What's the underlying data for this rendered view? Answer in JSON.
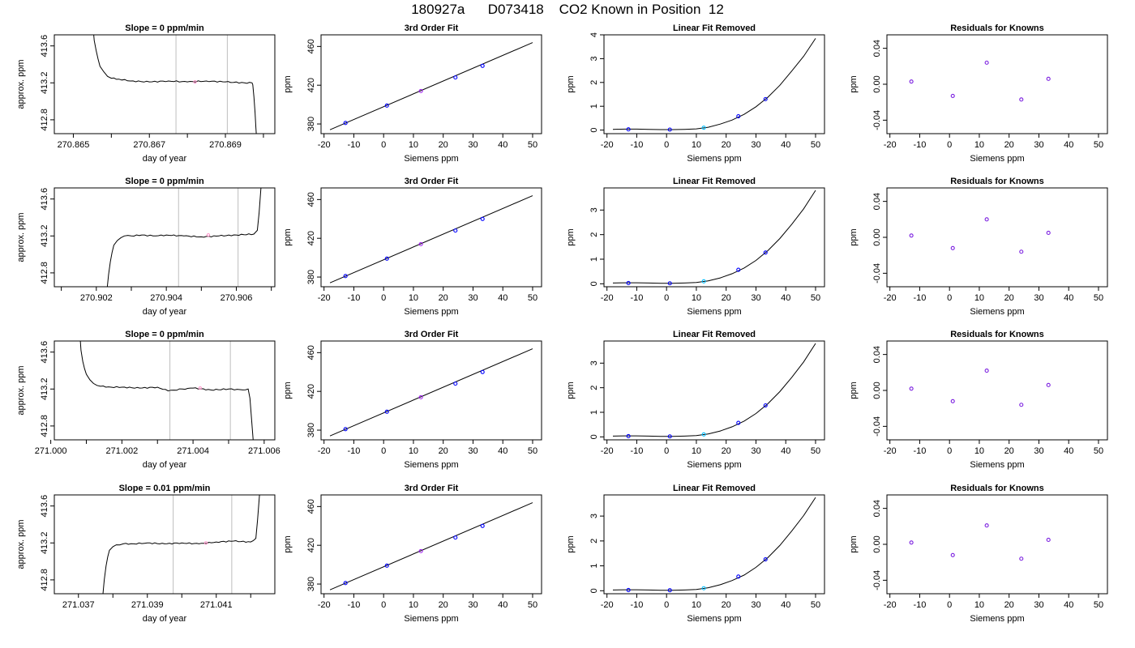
{
  "page": {
    "title": "180927a      D073418    CO2 Known in Position  12"
  },
  "chart_data": [
    {
      "type": "line",
      "panel": "timeseries",
      "row": 0,
      "col": 0,
      "title": "Slope =  0  ppm/min",
      "xlabel": "day of year",
      "ylabel": "approx. ppm",
      "xlim": [
        270.8645,
        270.8703
      ],
      "ylim": [
        412.65,
        413.72
      ],
      "xticks_major": [
        270.865,
        270.867,
        270.869
      ],
      "xticks_minor": [
        270.866,
        270.868,
        270.87
      ],
      "yticks": [
        412.8,
        413.2,
        413.6
      ],
      "vlines": [
        270.8677,
        270.86905
      ],
      "series": [
        {
          "x": [
            270.8655,
            270.86555,
            270.8656,
            270.86565,
            270.8657,
            270.8658,
            270.8659,
            270.866,
            270.8662,
            270.8665,
            270.867,
            270.8675,
            270.868,
            270.8685,
            270.869,
            270.8695,
            270.8697,
            270.86972,
            270.86975,
            270.86978,
            270.8698,
            270.86982
          ],
          "y": [
            413.9,
            413.66,
            413.55,
            413.46,
            413.38,
            413.32,
            413.27,
            413.25,
            413.24,
            413.22,
            413.21,
            413.22,
            413.21,
            413.22,
            413.21,
            413.2,
            413.2,
            413.18,
            413.05,
            412.88,
            412.72,
            412.6
          ]
        }
      ],
      "marker": {
        "x": 270.8682,
        "y": 413.21
      }
    },
    {
      "type": "line",
      "panel": "timeseries",
      "row": 1,
      "col": 0,
      "title": "Slope =  0  ppm/min",
      "xlabel": "day of year",
      "ylabel": "approx. ppm",
      "xlim": [
        270.9008,
        270.9071
      ],
      "ylim": [
        412.65,
        413.72
      ],
      "xticks_major": [
        270.902,
        270.904,
        270.906
      ],
      "xticks_minor": [
        270.901,
        270.903,
        270.905,
        270.907
      ],
      "yticks": [
        412.8,
        413.2,
        413.6
      ],
      "vlines": [
        270.90435,
        270.90605
      ],
      "series": [
        {
          "x": [
            270.9023,
            270.90235,
            270.9024,
            270.90245,
            270.9025,
            270.9026,
            270.9027,
            270.9028,
            270.903,
            270.9033,
            270.9037,
            270.904,
            270.9045,
            270.905,
            270.9055,
            270.906,
            270.9065,
            270.9066,
            270.90665,
            270.9067,
            270.90675
          ],
          "y": [
            412.6,
            412.78,
            412.92,
            413.02,
            413.1,
            413.15,
            413.18,
            413.2,
            413.2,
            413.21,
            413.2,
            413.21,
            413.2,
            413.19,
            413.2,
            413.21,
            413.22,
            413.26,
            413.45,
            413.7,
            413.9
          ]
        }
      ],
      "marker": {
        "x": 270.9052,
        "y": 413.21
      }
    },
    {
      "type": "line",
      "panel": "timeseries",
      "row": 2,
      "col": 0,
      "title": "Slope =  0  ppm/min",
      "xlabel": "day of year",
      "ylabel": "approx. ppm",
      "xlim": [
        271.0001,
        271.0063
      ],
      "ylim": [
        412.65,
        413.72
      ],
      "xticks_major": [
        271.0,
        271.002,
        271.004,
        271.006
      ],
      "xticks_minor": [
        271.001,
        271.003,
        271.005
      ],
      "yticks": [
        412.8,
        413.2,
        413.6
      ],
      "vlines": [
        271.00335,
        271.00505
      ],
      "series": [
        {
          "x": [
            271.0008,
            271.00085,
            271.0009,
            271.00095,
            271.001,
            271.0011,
            271.0012,
            271.0014,
            271.0017,
            271.002,
            271.0025,
            271.003,
            271.0033,
            271.0037,
            271.004,
            271.0045,
            271.005,
            271.0054,
            271.00555,
            271.0056,
            271.00565,
            271.0057
          ],
          "y": [
            413.9,
            413.62,
            413.5,
            413.42,
            413.36,
            413.3,
            413.26,
            413.23,
            413.22,
            413.22,
            413.21,
            413.22,
            413.18,
            413.2,
            413.21,
            413.19,
            413.2,
            413.19,
            413.2,
            413.1,
            412.85,
            412.6
          ]
        }
      ],
      "marker": {
        "x": 271.0042,
        "y": 413.21
      }
    },
    {
      "type": "line",
      "panel": "timeseries",
      "row": 3,
      "col": 0,
      "title": "Slope =  0.01  ppm/min",
      "xlabel": "day of year",
      "ylabel": "approx. ppm",
      "xlim": [
        271.0363,
        271.0427
      ],
      "ylim": [
        412.65,
        413.72
      ],
      "xticks_major": [
        271.037,
        271.039,
        271.041
      ],
      "xticks_minor": [
        271.038,
        271.04,
        271.042
      ],
      "yticks": [
        412.8,
        413.2,
        413.6
      ],
      "vlines": [
        271.03975,
        271.04145
      ],
      "series": [
        {
          "x": [
            271.0377,
            271.03775,
            271.0378,
            271.03785,
            271.0379,
            271.038,
            271.0381,
            271.0383,
            271.0386,
            271.039,
            271.0395,
            271.04,
            271.0405,
            271.041,
            271.0415,
            271.042,
            271.04215,
            271.0422,
            271.04225,
            271.0423
          ],
          "y": [
            412.6,
            412.8,
            412.95,
            413.05,
            413.12,
            413.16,
            413.18,
            413.19,
            413.19,
            413.2,
            413.19,
            413.2,
            413.19,
            413.21,
            413.22,
            413.21,
            413.25,
            413.45,
            413.7,
            413.9
          ]
        }
      ],
      "marker": {
        "x": 271.0407,
        "y": 413.2
      }
    },
    {
      "type": "scatter",
      "panel": "cubic",
      "row": 0,
      "col": 1,
      "title": "3rd Order Fit",
      "xlabel": "Siemens ppm",
      "ylabel": "ppm",
      "xlim": [
        -21,
        53
      ],
      "ylim": [
        370,
        472
      ],
      "xticks": [
        -20,
        -10,
        0,
        10,
        20,
        30,
        40,
        50
      ],
      "yticks": [
        380,
        420,
        460
      ],
      "line": {
        "x0": -18,
        "y0": 374,
        "x1": 50,
        "y1": 464
      },
      "x": [
        -12.8,
        1.1,
        12.5,
        24.1,
        33.2
      ],
      "y": [
        381,
        399,
        414,
        428,
        440
      ]
    },
    {
      "type": "scatter",
      "panel": "cubic",
      "row": 1,
      "col": 1,
      "title": "3rd Order Fit",
      "xlabel": "Siemens ppm",
      "ylabel": "ppm",
      "xlim": [
        -21,
        53
      ],
      "ylim": [
        370,
        472
      ],
      "xticks": [
        -20,
        -10,
        0,
        10,
        20,
        30,
        40,
        50
      ],
      "yticks": [
        380,
        420,
        460
      ],
      "line": {
        "x0": -18,
        "y0": 374,
        "x1": 50,
        "y1": 464
      },
      "x": [
        -12.8,
        1.1,
        12.5,
        24.1,
        33.2
      ],
      "y": [
        381,
        399,
        414,
        428,
        440
      ]
    },
    {
      "type": "scatter",
      "panel": "cubic",
      "row": 2,
      "col": 1,
      "title": "3rd Order Fit",
      "xlabel": "Siemens ppm",
      "ylabel": "ppm",
      "xlim": [
        -21,
        53
      ],
      "ylim": [
        370,
        472
      ],
      "xticks": [
        -20,
        -10,
        0,
        10,
        20,
        30,
        40,
        50
      ],
      "yticks": [
        380,
        420,
        460
      ],
      "line": {
        "x0": -18,
        "y0": 374,
        "x1": 50,
        "y1": 464
      },
      "x": [
        -12.8,
        1.1,
        12.5,
        24.1,
        33.2
      ],
      "y": [
        381,
        399,
        414,
        428,
        440
      ]
    },
    {
      "type": "scatter",
      "panel": "cubic",
      "row": 3,
      "col": 1,
      "title": "3rd Order Fit",
      "xlabel": "Siemens ppm",
      "ylabel": "ppm",
      "xlim": [
        -21,
        53
      ],
      "ylim": [
        370,
        472
      ],
      "xticks": [
        -20,
        -10,
        0,
        10,
        20,
        30,
        40,
        50
      ],
      "yticks": [
        380,
        420,
        460
      ],
      "line": {
        "x0": -18,
        "y0": 374,
        "x1": 50,
        "y1": 464
      },
      "x": [
        -12.8,
        1.1,
        12.5,
        24.1,
        33.2
      ],
      "y": [
        381,
        399,
        414,
        428,
        440
      ]
    },
    {
      "type": "scatter",
      "panel": "linremoved",
      "row": 0,
      "col": 2,
      "title": "Linear Fit Removed",
      "xlabel": "Siemens ppm",
      "ylabel": "ppm",
      "xlim": [
        -21,
        53
      ],
      "ylim": [
        -0.15,
        4.0
      ],
      "xticks": [
        -20,
        -10,
        0,
        10,
        20,
        30,
        40,
        50
      ],
      "yticks": [
        0,
        1,
        2,
        3,
        4
      ],
      "curve": {
        "x": [
          -18,
          -14,
          -10,
          -6,
          -2,
          2,
          6,
          10,
          14,
          18,
          22,
          26,
          30,
          34,
          38,
          42,
          46,
          50
        ],
        "y": [
          0.03,
          0.04,
          0.04,
          0.03,
          0.02,
          0.02,
          0.03,
          0.05,
          0.12,
          0.25,
          0.42,
          0.66,
          0.98,
          1.38,
          1.88,
          2.48,
          3.1,
          3.85
        ]
      },
      "x": [
        -12.8,
        1.1,
        12.5,
        24.1,
        33.2
      ],
      "y": [
        0.03,
        0.02,
        0.1,
        0.58,
        1.3
      ]
    },
    {
      "type": "scatter",
      "panel": "linremoved",
      "row": 1,
      "col": 2,
      "title": "Linear Fit Removed",
      "xlabel": "Siemens ppm",
      "ylabel": "ppm",
      "xlim": [
        -21,
        53
      ],
      "ylim": [
        -0.12,
        3.9
      ],
      "xticks": [
        -20,
        -10,
        0,
        10,
        20,
        30,
        40,
        50
      ],
      "yticks": [
        0,
        1,
        2,
        3
      ],
      "curve": {
        "x": [
          -18,
          -14,
          -10,
          -6,
          -2,
          2,
          6,
          10,
          14,
          18,
          22,
          26,
          30,
          34,
          38,
          42,
          46,
          50
        ],
        "y": [
          0.03,
          0.04,
          0.04,
          0.03,
          0.02,
          0.02,
          0.03,
          0.05,
          0.12,
          0.24,
          0.41,
          0.64,
          0.95,
          1.35,
          1.84,
          2.42,
          3.05,
          3.8
        ]
      },
      "x": [
        -12.8,
        1.1,
        12.5,
        24.1,
        33.2
      ],
      "y": [
        0.03,
        0.02,
        0.1,
        0.57,
        1.27
      ]
    },
    {
      "type": "scatter",
      "panel": "linremoved",
      "row": 2,
      "col": 2,
      "title": "Linear Fit Removed",
      "xlabel": "Siemens ppm",
      "ylabel": "ppm",
      "xlim": [
        -21,
        53
      ],
      "ylim": [
        -0.12,
        3.9
      ],
      "xticks": [
        -20,
        -10,
        0,
        10,
        20,
        30,
        40,
        50
      ],
      "yticks": [
        0,
        1,
        2,
        3
      ],
      "curve": {
        "x": [
          -18,
          -14,
          -10,
          -6,
          -2,
          2,
          6,
          10,
          14,
          18,
          22,
          26,
          30,
          34,
          38,
          42,
          46,
          50
        ],
        "y": [
          0.03,
          0.04,
          0.04,
          0.03,
          0.02,
          0.02,
          0.03,
          0.05,
          0.12,
          0.24,
          0.41,
          0.64,
          0.95,
          1.35,
          1.84,
          2.42,
          3.05,
          3.8
        ]
      },
      "x": [
        -12.8,
        1.1,
        12.5,
        24.1,
        33.2
      ],
      "y": [
        0.03,
        0.02,
        0.1,
        0.57,
        1.28
      ]
    },
    {
      "type": "scatter",
      "panel": "linremoved",
      "row": 3,
      "col": 2,
      "title": "Linear Fit Removed",
      "xlabel": "Siemens ppm",
      "ylabel": "ppm",
      "xlim": [
        -21,
        53
      ],
      "ylim": [
        -0.12,
        3.85
      ],
      "xticks": [
        -20,
        -10,
        0,
        10,
        20,
        30,
        40,
        50
      ],
      "yticks": [
        0,
        1,
        2,
        3
      ],
      "curve": {
        "x": [
          -18,
          -14,
          -10,
          -6,
          -2,
          2,
          6,
          10,
          14,
          18,
          22,
          26,
          30,
          34,
          38,
          42,
          46,
          50
        ],
        "y": [
          0.03,
          0.04,
          0.04,
          0.03,
          0.02,
          0.02,
          0.03,
          0.05,
          0.12,
          0.24,
          0.41,
          0.63,
          0.94,
          1.33,
          1.82,
          2.4,
          3.02,
          3.75
        ]
      },
      "x": [
        -12.8,
        1.1,
        12.5,
        24.1,
        33.2
      ],
      "y": [
        0.03,
        0.02,
        0.1,
        0.57,
        1.26
      ]
    },
    {
      "type": "scatter",
      "panel": "residuals",
      "row": 0,
      "col": 3,
      "title": "Residuals for Knowns",
      "xlabel": "Siemens ppm",
      "ylabel": "ppm",
      "xlim": [
        -21,
        53
      ],
      "ylim": [
        -0.055,
        0.055
      ],
      "xticks": [
        -20,
        -10,
        0,
        10,
        20,
        30,
        40,
        50
      ],
      "yticks": [
        -0.04,
        0.0,
        0.04
      ],
      "x": [
        -12.8,
        1.1,
        12.5,
        24.1,
        33.2
      ],
      "y": [
        0.003,
        -0.013,
        0.024,
        -0.017,
        0.006
      ]
    },
    {
      "type": "scatter",
      "panel": "residuals",
      "row": 1,
      "col": 3,
      "title": "Residuals for Knowns",
      "xlabel": "Siemens ppm",
      "ylabel": "ppm",
      "xlim": [
        -21,
        53
      ],
      "ylim": [
        -0.055,
        0.055
      ],
      "xticks": [
        -20,
        -10,
        0,
        10,
        20,
        30,
        40,
        50
      ],
      "yticks": [
        -0.04,
        0.0,
        0.04
      ],
      "x": [
        -12.8,
        1.1,
        12.5,
        24.1,
        33.2
      ],
      "y": [
        0.002,
        -0.012,
        0.02,
        -0.016,
        0.005
      ]
    },
    {
      "type": "scatter",
      "panel": "residuals",
      "row": 2,
      "col": 3,
      "title": "Residuals for Knowns",
      "xlabel": "Siemens ppm",
      "ylabel": "ppm",
      "xlim": [
        -21,
        53
      ],
      "ylim": [
        -0.055,
        0.055
      ],
      "xticks": [
        -20,
        -10,
        0,
        10,
        20,
        30,
        40,
        50
      ],
      "yticks": [
        -0.04,
        0.0,
        0.04
      ],
      "x": [
        -12.8,
        1.1,
        12.5,
        24.1,
        33.2
      ],
      "y": [
        0.002,
        -0.012,
        0.022,
        -0.016,
        0.006
      ]
    },
    {
      "type": "scatter",
      "panel": "residuals",
      "row": 3,
      "col": 3,
      "title": "Residuals for Knowns",
      "xlabel": "Siemens ppm",
      "ylabel": "ppm",
      "xlim": [
        -21,
        53
      ],
      "ylim": [
        -0.055,
        0.055
      ],
      "xticks": [
        -20,
        -10,
        0,
        10,
        20,
        30,
        40,
        50
      ],
      "yticks": [
        -0.04,
        0.0,
        0.04
      ],
      "x": [
        -12.8,
        1.1,
        12.5,
        24.1,
        33.2
      ],
      "y": [
        0.002,
        -0.012,
        0.021,
        -0.016,
        0.005
      ]
    }
  ],
  "colors": {
    "line": "#000000",
    "axis": "#000000",
    "vline": "#bebebe",
    "point_default": "#0000ff",
    "point_mid": "#a020f0",
    "point_cyan": "#00bfff",
    "point_residual": "#7b1fe0",
    "marker_pink": "#ff8fc8"
  }
}
